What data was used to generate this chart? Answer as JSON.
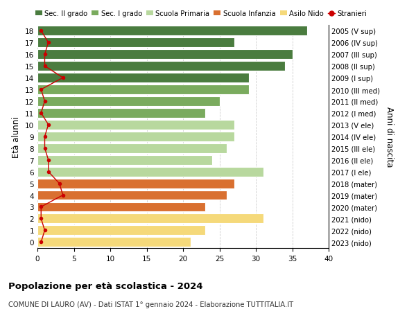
{
  "ages": [
    18,
    17,
    16,
    15,
    14,
    13,
    12,
    11,
    10,
    9,
    8,
    7,
    6,
    5,
    4,
    3,
    2,
    1,
    0
  ],
  "right_labels": [
    "2005 (V sup)",
    "2006 (IV sup)",
    "2007 (III sup)",
    "2008 (II sup)",
    "2009 (I sup)",
    "2010 (III med)",
    "2011 (II med)",
    "2012 (I med)",
    "2013 (V ele)",
    "2014 (IV ele)",
    "2015 (III ele)",
    "2016 (II ele)",
    "2017 (I ele)",
    "2018 (mater)",
    "2019 (mater)",
    "2020 (mater)",
    "2021 (nido)",
    "2022 (nido)",
    "2023 (nido)"
  ],
  "bar_values": [
    37,
    27,
    35,
    34,
    29,
    29,
    25,
    23,
    27,
    27,
    26,
    24,
    31,
    27,
    26,
    23,
    31,
    23,
    21
  ],
  "bar_colors": [
    "#4a7c3f",
    "#4a7c3f",
    "#4a7c3f",
    "#4a7c3f",
    "#4a7c3f",
    "#7aab5e",
    "#7aab5e",
    "#7aab5e",
    "#b8d89e",
    "#b8d89e",
    "#b8d89e",
    "#b8d89e",
    "#b8d89e",
    "#d97030",
    "#d97030",
    "#d97030",
    "#f5d97a",
    "#f5d97a",
    "#f5d97a"
  ],
  "stranieri_values": [
    0.5,
    1.5,
    1.0,
    1.0,
    3.5,
    0.5,
    1.0,
    0.5,
    1.5,
    1.0,
    1.0,
    1.5,
    1.5,
    3.0,
    3.5,
    0.5,
    0.5,
    1.0,
    0.5
  ],
  "title_bold": "Popolazione per età scolastica - 2024",
  "subtitle": "COMUNE DI LAURO (AV) - Dati ISTAT 1° gennaio 2024 - Elaborazione TUTTITALIA.IT",
  "ylabel": "Età alunni",
  "right_ylabel": "Anni di nascita",
  "xlim": [
    0,
    40
  ],
  "xticks": [
    0,
    5,
    10,
    15,
    20,
    25,
    30,
    35,
    40
  ],
  "legend_labels": [
    "Sec. II grado",
    "Sec. I grado",
    "Scuola Primaria",
    "Scuola Infanzia",
    "Asilo Nido",
    "Stranieri"
  ],
  "legend_colors": [
    "#4a7c3f",
    "#7aab5e",
    "#b8d89e",
    "#d97030",
    "#f5d97a",
    "#cc0000"
  ],
  "bg_color": "#ffffff",
  "bar_edge_color": "#ffffff",
  "grid_color": "#cccccc"
}
